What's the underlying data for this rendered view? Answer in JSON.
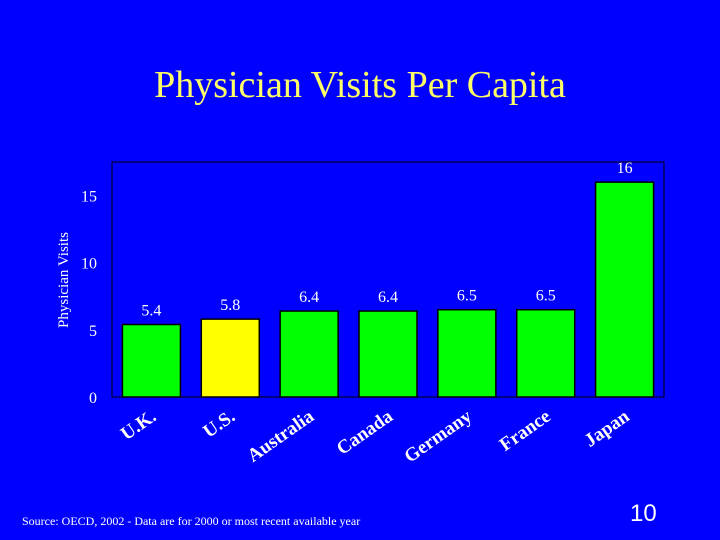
{
  "slide": {
    "title": "Physician Visits Per Capita",
    "source": "Source: OECD, 2002 - Data are for 2000 or most recent available year",
    "page_number": "10"
  },
  "colors": {
    "background": "#0000ff",
    "title": "#ffff66",
    "bar_default": "#00ff00",
    "bar_highlight": "#ffff00",
    "text": "#ffffff"
  },
  "chart_data": {
    "type": "bar",
    "title": "",
    "xlabel": "",
    "ylabel": "Physician Visits",
    "categories": [
      "U.K.",
      "U.S.",
      "Australia",
      "Canada",
      "Germany",
      "France",
      "Japan"
    ],
    "values": [
      5.4,
      5.8,
      6.4,
      6.4,
      6.5,
      6.5,
      16
    ],
    "value_labels": [
      "5.4",
      "5.8",
      "6.4",
      "6.4",
      "6.5",
      "6.5",
      "16"
    ],
    "highlight_category": "U.S.",
    "ylim": [
      0,
      17.5
    ],
    "yticks": [
      0,
      5,
      10,
      15
    ],
    "grid": false,
    "legend": "none"
  }
}
